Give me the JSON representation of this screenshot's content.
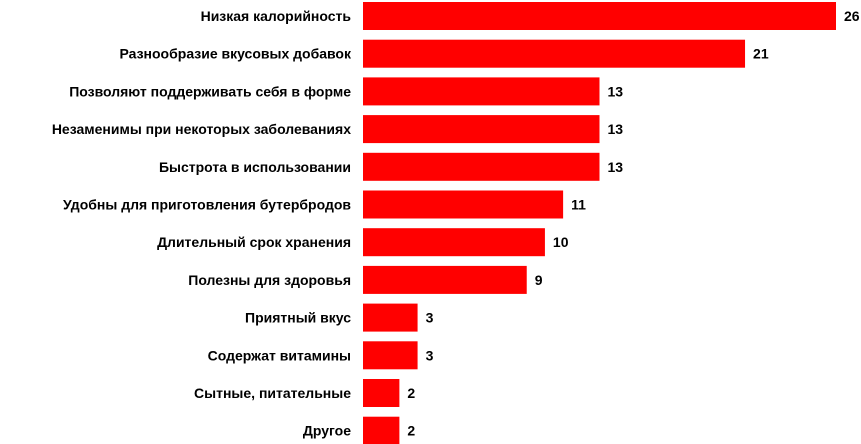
{
  "chart_data": {
    "type": "bar",
    "orientation": "horizontal",
    "title": "",
    "xlabel": "",
    "ylabel": "",
    "categories": [
      "Низкая калорийность",
      "Разнообразие вкусовых добавок",
      "Позволяют поддерживать себя в форме",
      "Незаменимы при некоторых заболеваниях",
      "Быстрота в использовании",
      "Удобны для приготовления бутербродов",
      "Длительный срок хранения",
      "Полезны для здоровья",
      "Приятный вкус",
      "Содержат витамины",
      "Сытные, питательные",
      "Другое"
    ],
    "values": [
      26,
      21,
      13,
      13,
      13,
      11,
      10,
      9,
      3,
      3,
      2,
      2
    ],
    "value_labels": [
      "26",
      "21",
      "13",
      "13",
      "13",
      "11",
      "10",
      "9",
      "3",
      "3",
      "2",
      "2"
    ],
    "xlim": [
      0,
      26
    ],
    "grid": false,
    "legend": "none",
    "bar_color": "#ff0000"
  }
}
